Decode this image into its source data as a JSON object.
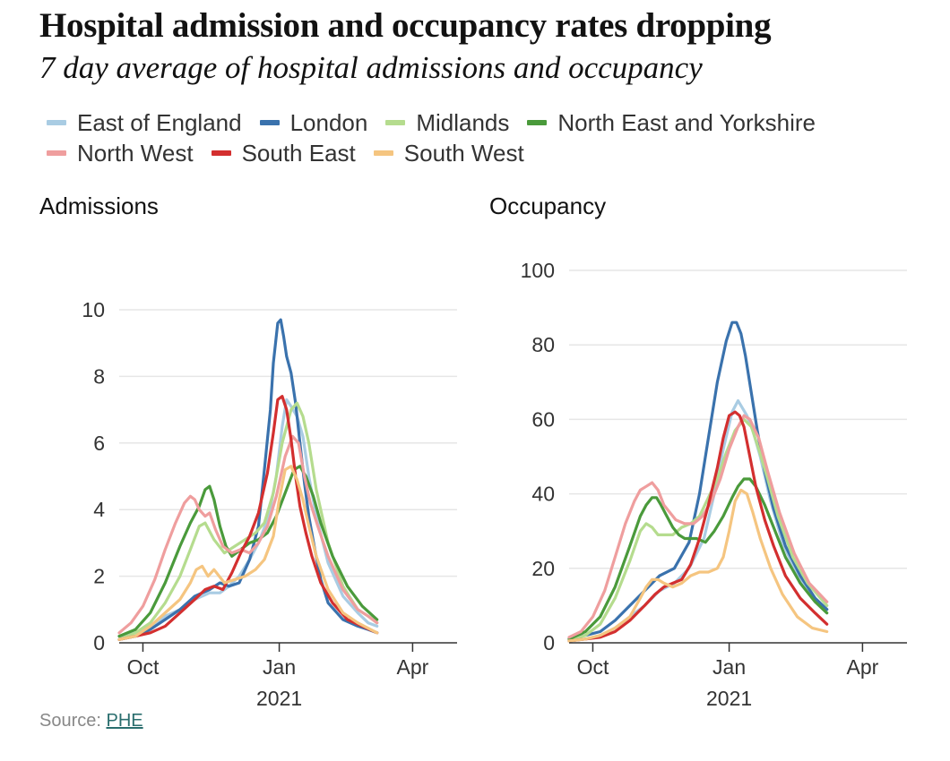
{
  "title": "Hospital admission and occupancy rates dropping",
  "subtitle": "7 day average of hospital admissions and occupancy",
  "legend": [
    {
      "name": "East of England",
      "color": "#a9cce3"
    },
    {
      "name": "London",
      "color": "#3a72ad"
    },
    {
      "name": "Midlands",
      "color": "#b5dc8e"
    },
    {
      "name": "North East and Yorkshire",
      "color": "#4a9a3b"
    },
    {
      "name": "North West",
      "color": "#ef9e9e"
    },
    {
      "name": "South East",
      "color": "#d32f2f"
    },
    {
      "name": "South West",
      "color": "#f5c580"
    }
  ],
  "source": {
    "label": "Source:",
    "link_text": "PHE"
  },
  "chart_data": [
    {
      "type": "line",
      "title": "Admissions",
      "xlabel": "2021",
      "ylabel": "",
      "x_unit": "days since 1 Sep 2020",
      "xlim": [
        14,
        242
      ],
      "ylim": [
        0,
        10
      ],
      "yticks": [
        0,
        2,
        4,
        6,
        8,
        10
      ],
      "xticks": [
        {
          "x": 30,
          "label": "Oct"
        },
        {
          "x": 122,
          "label": "Jan"
        },
        {
          "x": 212,
          "label": "Apr"
        }
      ],
      "grid": true,
      "series": [
        {
          "name": "East of England",
          "x": [
            14,
            25,
            35,
            45,
            55,
            65,
            75,
            82,
            88,
            95,
            102,
            108,
            115,
            120,
            124,
            127,
            130,
            134,
            138,
            142,
            147,
            155,
            165,
            175,
            182,
            188
          ],
          "values": [
            0.2,
            0.3,
            0.5,
            0.8,
            1.0,
            1.3,
            1.5,
            1.5,
            1.7,
            2.0,
            2.5,
            3.0,
            3.8,
            5.0,
            6.5,
            7.3,
            7.1,
            6.8,
            6.2,
            5.0,
            3.8,
            2.4,
            1.4,
            0.9,
            0.6,
            0.5
          ]
        },
        {
          "name": "London",
          "x": [
            14,
            25,
            35,
            45,
            55,
            65,
            75,
            82,
            88,
            95,
            102,
            108,
            112,
            116,
            118,
            121,
            123,
            125,
            127,
            130,
            133,
            136,
            139,
            142,
            146,
            150,
            155,
            165,
            175,
            182,
            188
          ],
          "values": [
            0.1,
            0.2,
            0.4,
            0.7,
            1.0,
            1.4,
            1.6,
            1.8,
            1.7,
            1.8,
            2.5,
            3.5,
            5.2,
            7.0,
            8.4,
            9.6,
            9.7,
            9.2,
            8.6,
            8.1,
            7.2,
            6.0,
            4.8,
            3.8,
            2.8,
            1.9,
            1.2,
            0.7,
            0.5,
            0.4,
            0.3
          ]
        },
        {
          "name": "Midlands",
          "x": [
            14,
            25,
            35,
            45,
            55,
            62,
            68,
            72,
            78,
            85,
            92,
            99,
            106,
            112,
            118,
            124,
            130,
            134,
            138,
            142,
            147,
            155,
            165,
            175,
            182,
            188
          ],
          "values": [
            0.1,
            0.3,
            0.6,
            1.2,
            2.0,
            2.8,
            3.5,
            3.6,
            3.1,
            2.7,
            2.9,
            3.1,
            3.3,
            3.6,
            4.5,
            6.0,
            7.0,
            7.2,
            6.8,
            6.0,
            4.6,
            3.0,
            1.7,
            1.0,
            0.8,
            0.6
          ]
        },
        {
          "name": "North East and Yorkshire",
          "x": [
            14,
            25,
            35,
            45,
            55,
            62,
            68,
            72,
            75,
            78,
            82,
            86,
            90,
            96,
            102,
            108,
            114,
            120,
            126,
            132,
            136,
            140,
            145,
            150,
            158,
            168,
            178,
            188
          ],
          "values": [
            0.2,
            0.4,
            0.9,
            1.8,
            2.9,
            3.6,
            4.1,
            4.6,
            4.7,
            4.3,
            3.5,
            2.9,
            2.6,
            2.8,
            3.0,
            3.1,
            3.3,
            3.8,
            4.5,
            5.2,
            5.3,
            5.0,
            4.4,
            3.6,
            2.6,
            1.7,
            1.1,
            0.7
          ]
        },
        {
          "name": "North West",
          "x": [
            14,
            22,
            30,
            38,
            45,
            52,
            58,
            62,
            65,
            68,
            72,
            75,
            79,
            84,
            90,
            96,
            102,
            108,
            114,
            120,
            126,
            131,
            135,
            139,
            143,
            148,
            155,
            165,
            175,
            182,
            188
          ],
          "values": [
            0.3,
            0.6,
            1.1,
            1.9,
            2.8,
            3.6,
            4.2,
            4.4,
            4.3,
            4.0,
            3.8,
            3.9,
            3.4,
            2.9,
            2.7,
            2.8,
            2.7,
            3.0,
            3.5,
            4.4,
            5.6,
            6.2,
            6.0,
            5.0,
            4.2,
            3.5,
            2.6,
            1.6,
            1.0,
            0.8,
            0.6
          ]
        },
        {
          "name": "South East",
          "x": [
            14,
            25,
            35,
            45,
            55,
            65,
            72,
            78,
            84,
            90,
            96,
            102,
            108,
            114,
            118,
            121,
            124,
            127,
            130,
            133,
            136,
            140,
            144,
            150,
            158,
            168,
            178,
            188
          ],
          "values": [
            0.1,
            0.2,
            0.3,
            0.5,
            0.9,
            1.3,
            1.6,
            1.7,
            1.6,
            2.1,
            2.7,
            3.2,
            3.9,
            5.1,
            6.3,
            7.3,
            7.4,
            7.0,
            6.1,
            5.0,
            4.1,
            3.3,
            2.6,
            1.8,
            1.2,
            0.7,
            0.5,
            0.3
          ]
        },
        {
          "name": "South West",
          "x": [
            14,
            25,
            35,
            45,
            55,
            62,
            66,
            70,
            74,
            78,
            85,
            92,
            99,
            106,
            112,
            118,
            122,
            126,
            130,
            134,
            138,
            142,
            147,
            155,
            165,
            175,
            188
          ],
          "values": [
            0.1,
            0.2,
            0.5,
            0.9,
            1.3,
            1.8,
            2.2,
            2.3,
            2.0,
            2.2,
            1.8,
            1.9,
            2.0,
            2.2,
            2.5,
            3.2,
            4.3,
            5.2,
            5.3,
            4.9,
            4.3,
            3.5,
            2.6,
            1.6,
            0.9,
            0.6,
            0.3
          ]
        }
      ]
    },
    {
      "type": "line",
      "title": "Occupancy",
      "xlabel": "2021",
      "ylabel": "",
      "x_unit": "days since 1 Sep 2020",
      "xlim": [
        14,
        242
      ],
      "ylim": [
        0,
        100
      ],
      "yticks": [
        0,
        20,
        40,
        60,
        80,
        100
      ],
      "xticks": [
        {
          "x": 30,
          "label": "Oct"
        },
        {
          "x": 122,
          "label": "Jan"
        },
        {
          "x": 212,
          "label": "Apr"
        }
      ],
      "grid": true,
      "series": [
        {
          "name": "East of England",
          "x": [
            14,
            25,
            35,
            45,
            55,
            65,
            75,
            85,
            95,
            105,
            112,
            118,
            124,
            128,
            131,
            134,
            138,
            143,
            150,
            158,
            168,
            178,
            188
          ],
          "values": [
            0.5,
            1,
            2,
            4,
            7,
            10,
            14,
            16,
            20,
            28,
            40,
            52,
            62,
            65,
            63,
            61,
            57,
            50,
            38,
            27,
            18,
            12,
            9
          ]
        },
        {
          "name": "London",
          "x": [
            14,
            25,
            35,
            45,
            55,
            65,
            75,
            85,
            95,
            102,
            108,
            114,
            120,
            124,
            127,
            130,
            133,
            137,
            141,
            146,
            152,
            160,
            170,
            180,
            188
          ],
          "values": [
            1,
            2,
            3,
            6,
            10,
            14,
            18,
            20,
            27,
            40,
            55,
            70,
            81,
            86,
            86,
            83,
            77,
            67,
            57,
            46,
            36,
            26,
            18,
            12,
            9
          ]
        },
        {
          "name": "Midlands",
          "x": [
            14,
            25,
            35,
            45,
            55,
            62,
            66,
            70,
            74,
            78,
            84,
            90,
            96,
            102,
            108,
            114,
            120,
            126,
            132,
            137,
            142,
            148,
            155,
            165,
            175,
            188
          ],
          "values": [
            0.5,
            2,
            5,
            12,
            22,
            30,
            32,
            31,
            29,
            29,
            29,
            31,
            32,
            34,
            39,
            44,
            51,
            57,
            60,
            58,
            52,
            44,
            34,
            23,
            16,
            10
          ]
        },
        {
          "name": "North East and Yorkshire",
          "x": [
            14,
            25,
            35,
            45,
            55,
            62,
            66,
            70,
            73,
            76,
            80,
            84,
            88,
            92,
            96,
            100,
            106,
            112,
            118,
            124,
            128,
            132,
            136,
            140,
            146,
            152,
            160,
            170,
            180,
            188
          ],
          "values": [
            1,
            3,
            7,
            15,
            26,
            34,
            37,
            39,
            39,
            37,
            34,
            31,
            29,
            28,
            28,
            28,
            27,
            30,
            34,
            39,
            42,
            44,
            44,
            42,
            37,
            31,
            23,
            16,
            11,
            8
          ]
        },
        {
          "name": "North West",
          "x": [
            14,
            22,
            30,
            38,
            45,
            52,
            58,
            62,
            66,
            70,
            74,
            78,
            82,
            86,
            92,
            98,
            104,
            110,
            116,
            122,
            128,
            132,
            136,
            142,
            148,
            156,
            166,
            176,
            188
          ],
          "values": [
            1.5,
            3,
            7,
            14,
            23,
            32,
            38,
            41,
            42,
            43,
            41,
            37,
            35,
            33,
            32,
            32,
            34,
            38,
            44,
            52,
            58,
            61,
            60,
            55,
            46,
            35,
            24,
            16,
            11
          ]
        },
        {
          "name": "South East",
          "x": [
            14,
            25,
            35,
            45,
            55,
            65,
            72,
            78,
            84,
            90,
            96,
            102,
            108,
            114,
            118,
            122,
            126,
            129,
            132,
            136,
            140,
            146,
            152,
            160,
            170,
            180,
            188
          ],
          "values": [
            0.5,
            1,
            1.5,
            3,
            6,
            10,
            13,
            15,
            16,
            17,
            21,
            28,
            37,
            47,
            55,
            61,
            62,
            61,
            58,
            50,
            42,
            33,
            26,
            18,
            12,
            8,
            5
          ]
        },
        {
          "name": "South West",
          "x": [
            14,
            25,
            35,
            45,
            55,
            62,
            66,
            70,
            74,
            78,
            84,
            90,
            96,
            102,
            108,
            114,
            118,
            122,
            126,
            130,
            134,
            138,
            143,
            150,
            158,
            168,
            178,
            188
          ],
          "values": [
            0.5,
            1,
            2,
            4,
            7,
            12,
            15,
            17,
            17,
            16,
            15,
            16,
            18,
            19,
            19,
            20,
            23,
            30,
            38,
            41,
            40,
            35,
            28,
            20,
            13,
            7,
            4,
            3
          ]
        }
      ]
    }
  ]
}
